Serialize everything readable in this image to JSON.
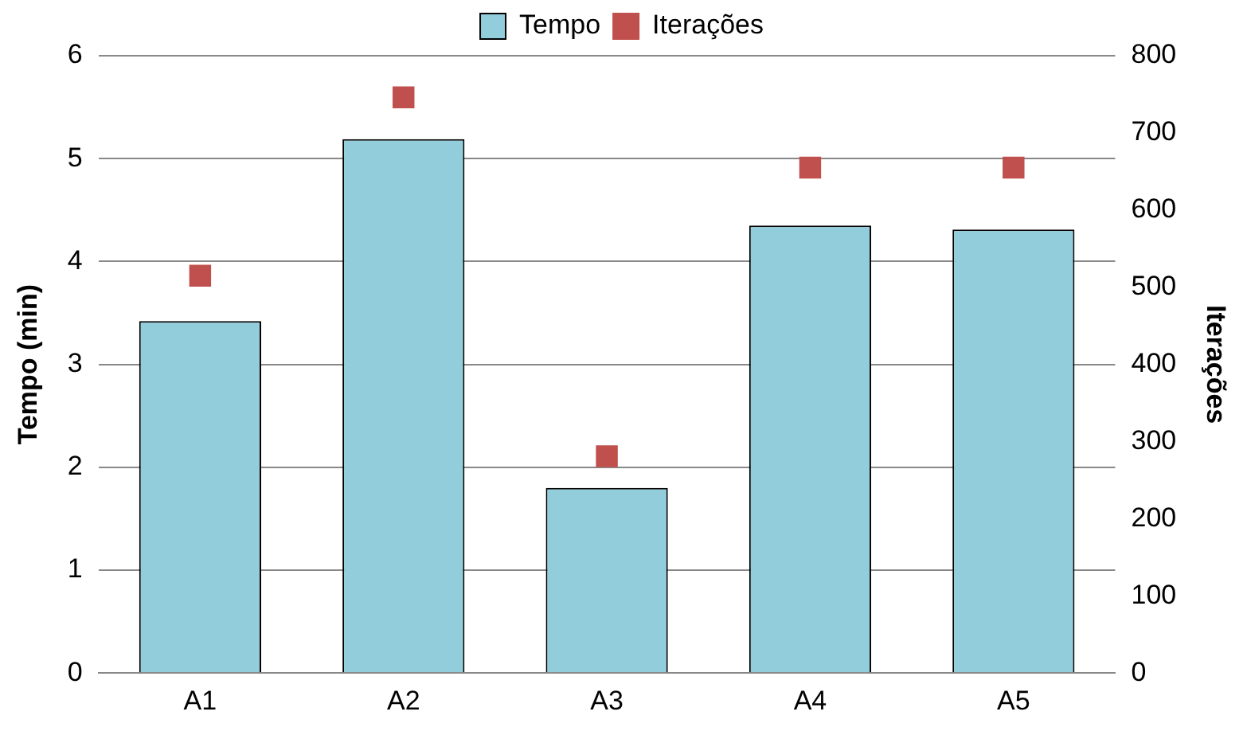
{
  "chart_data": {
    "type": "bar",
    "categories": [
      "A1",
      "A2",
      "A3",
      "A4",
      "A5"
    ],
    "series": [
      {
        "name": "Tempo",
        "color": "#92cddc",
        "values": [
          3.42,
          5.19,
          1.8,
          4.35,
          4.31
        ]
      },
      {
        "name": "Iterações",
        "type": "scatter",
        "axis": "y2",
        "color": "#c0504d",
        "values": [
          515,
          746,
          281,
          655,
          655
        ]
      }
    ],
    "ylabel": "Tempo (min)",
    "y2label": "Iterações",
    "ylim": [
      0,
      6
    ],
    "yticks": [
      0,
      1,
      2,
      3,
      4,
      5,
      6
    ],
    "y2lim": [
      0,
      800
    ],
    "y2ticks": [
      0,
      100,
      200,
      300,
      400,
      500,
      600,
      700,
      800
    ],
    "grid": "y",
    "legend": "top",
    "marker": "square"
  }
}
